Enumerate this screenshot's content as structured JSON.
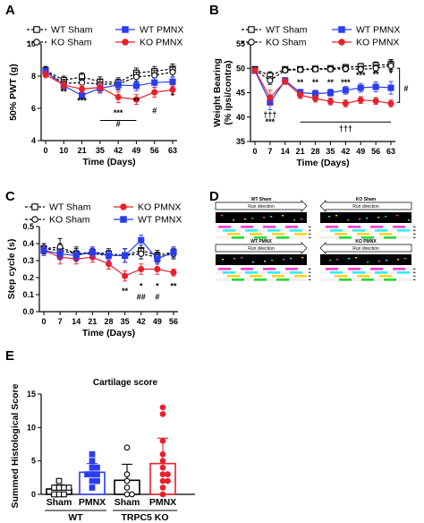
{
  "chart_data": [
    {
      "panel": "A",
      "type": "line",
      "ylabel": "50% PWT (g)",
      "xlabel": "Time (Days)",
      "ylim": [
        4,
        10
      ],
      "yticks": [
        4,
        6,
        8,
        10
      ],
      "x": [
        0,
        10,
        21,
        35,
        42,
        49,
        56,
        63
      ],
      "series": [
        {
          "name": "WT Sham",
          "color": "#000000",
          "marker": "square-open",
          "dashed": true,
          "values": [
            8.35,
            7.75,
            7.95,
            7.65,
            7.6,
            8.2,
            8.3,
            8.45
          ],
          "err": [
            0.25,
            0.25,
            0.25,
            0.3,
            0.3,
            0.3,
            0.3,
            0.3
          ]
        },
        {
          "name": "KO Sham",
          "color": "#000000",
          "marker": "circle-open",
          "dashed": true,
          "values": [
            8.3,
            7.55,
            7.6,
            7.5,
            7.5,
            7.95,
            8.05,
            8.25
          ],
          "err": [
            0.25,
            0.25,
            0.25,
            0.3,
            0.3,
            0.3,
            0.3,
            0.3
          ]
        },
        {
          "name": "WT PMNX",
          "color": "#2b3cf0",
          "marker": "square-filled",
          "dashed": false,
          "values": [
            8.3,
            7.4,
            6.8,
            7.25,
            7.45,
            7.4,
            7.6,
            7.65
          ],
          "err": [
            0.2,
            0.2,
            0.2,
            0.3,
            0.3,
            0.3,
            0.3,
            0.3
          ]
        },
        {
          "name": "KO PMNX",
          "color": "#e8202a",
          "marker": "circle-filled",
          "dashed": false,
          "values": [
            8.1,
            7.45,
            7.2,
            7.3,
            6.7,
            6.55,
            7.0,
            7.15
          ],
          "err": [
            0.2,
            0.2,
            0.25,
            0.3,
            0.35,
            0.3,
            0.3,
            0.3
          ]
        }
      ],
      "annotations": [
        {
          "text": "**",
          "x": 10,
          "y": 6.85
        },
        {
          "text": "***",
          "x": 21,
          "y": 6.3
        },
        {
          "text": "***",
          "x": 42,
          "y": 5.55
        },
        {
          "text": "#",
          "x": 42,
          "y": 4.85
        },
        {
          "text": "**",
          "x": 49,
          "y": 6.3
        },
        {
          "text": "#",
          "x": 56,
          "y": 5.7
        },
        {
          "text": "*",
          "x": 63,
          "y": 6.6
        }
      ],
      "bars": [
        {
          "x1": 35,
          "x2": 49,
          "y": 5.25
        }
      ]
    },
    {
      "panel": "B",
      "type": "line",
      "ylabel": "Weight Bearing (% ipsi/contra)",
      "xlabel": "Time (Days)",
      "ylim": [
        35,
        55
      ],
      "yticks": [
        35,
        40,
        45,
        50,
        55
      ],
      "x": [
        0,
        7,
        14,
        21,
        28,
        35,
        42,
        49,
        56,
        63
      ],
      "series": [
        {
          "name": "WT Sham",
          "color": "#000000",
          "marker": "square-open",
          "dashed": true,
          "values": [
            49.8,
            48.5,
            49.8,
            49.8,
            49.9,
            50.0,
            50.2,
            50.4,
            50.6,
            50.8
          ],
          "err": [
            0.5,
            0.8,
            0.5,
            0.5,
            0.5,
            0.5,
            0.6,
            0.6,
            0.7,
            1.0
          ]
        },
        {
          "name": "KO Sham",
          "color": "#000000",
          "marker": "circle-open",
          "dashed": true,
          "values": [
            49.7,
            47.5,
            49.6,
            49.7,
            49.8,
            49.8,
            49.9,
            49.8,
            50.0,
            50.5
          ],
          "err": [
            0.5,
            0.8,
            0.5,
            0.5,
            0.5,
            0.5,
            0.6,
            0.6,
            0.7,
            1.0
          ]
        },
        {
          "name": "WT PMNX",
          "color": "#2b3cf0",
          "marker": "square-filled",
          "dashed": false,
          "values": [
            49.5,
            43.0,
            47.5,
            45.0,
            44.8,
            45.0,
            45.5,
            46.0,
            46.2,
            46.0
          ],
          "err": [
            0.5,
            1.5,
            0.6,
            0.7,
            0.7,
            0.7,
            0.8,
            0.9,
            1.0,
            1.3
          ]
        },
        {
          "name": "KO PMNX",
          "color": "#e8202a",
          "marker": "circle-filled",
          "dashed": false,
          "values": [
            49.6,
            44.0,
            47.3,
            44.5,
            43.8,
            43.2,
            42.8,
            43.5,
            43.3,
            42.8
          ],
          "err": [
            0.5,
            1.5,
            0.6,
            0.7,
            0.7,
            0.7,
            0.7,
            0.7,
            0.7,
            0.7
          ]
        }
      ],
      "annotations": [
        {
          "text": "†††",
          "x": 7,
          "y": 40.0
        },
        {
          "text": "***",
          "x": 7,
          "y": 38.5
        },
        {
          "text": "**",
          "x": 21,
          "y": 46.6
        },
        {
          "text": "**",
          "x": 28,
          "y": 46.6
        },
        {
          "text": "**",
          "x": 35,
          "y": 46.6
        },
        {
          "text": "***",
          "x": 42,
          "y": 46.6
        },
        {
          "text": "***",
          "x": 49,
          "y": 48.0
        },
        {
          "text": "**",
          "x": 56,
          "y": 48.2
        },
        {
          "text": "*",
          "x": 63,
          "y": 48.4
        },
        {
          "text": "†††",
          "x": 42,
          "y": 37.1
        },
        {
          "text": "#",
          "x": 70,
          "y": 45.3
        }
      ],
      "bars": [
        {
          "x1": 21,
          "x2": 63,
          "y": 39.0
        }
      ],
      "bracket": {
        "x": 67,
        "y1": 43.0,
        "y2": 50.0
      }
    },
    {
      "panel": "C",
      "type": "line",
      "ylabel": "Step cycle (s)",
      "xlabel": "Time (Days)",
      "ylim": [
        0.0,
        0.5
      ],
      "yticks": [
        "0.0",
        "0.1",
        "0.2",
        "0.3",
        "0.4",
        "0.5"
      ],
      "x": [
        0,
        7,
        14,
        21,
        28,
        35,
        42,
        49,
        56
      ],
      "series": [
        {
          "name": "WT Sham",
          "color": "#000000",
          "marker": "square-open",
          "dashed": true,
          "values": [
            0.37,
            0.36,
            0.34,
            0.35,
            0.34,
            0.33,
            0.36,
            0.33,
            0.35
          ],
          "err": [
            0.03,
            0.04,
            0.03,
            0.03,
            0.03,
            0.04,
            0.03,
            0.03,
            0.03
          ]
        },
        {
          "name": "KO Sham",
          "color": "#000000",
          "marker": "circle-open",
          "dashed": true,
          "values": [
            0.37,
            0.38,
            0.34,
            0.34,
            0.33,
            0.33,
            0.34,
            0.32,
            0.34
          ],
          "err": [
            0.03,
            0.05,
            0.04,
            0.03,
            0.03,
            0.04,
            0.03,
            0.03,
            0.03
          ]
        },
        {
          "name": "KO PMNX",
          "color": "#e8202a",
          "marker": "circle-filled",
          "dashed": false,
          "values": [
            0.36,
            0.32,
            0.31,
            0.32,
            0.28,
            0.21,
            0.25,
            0.25,
            0.23
          ],
          "err": [
            0.03,
            0.04,
            0.03,
            0.03,
            0.03,
            0.03,
            0.03,
            0.03,
            0.02
          ]
        },
        {
          "name": "WT PMNX",
          "color": "#2b3cf0",
          "marker": "square-filled",
          "dashed": false,
          "values": [
            0.36,
            0.34,
            0.33,
            0.35,
            0.33,
            0.33,
            0.42,
            0.31,
            0.35
          ],
          "err": [
            0.03,
            0.03,
            0.03,
            0.03,
            0.03,
            0.04,
            0.03,
            0.03,
            0.03
          ]
        }
      ],
      "annotations": [
        {
          "text": "**",
          "x": 35,
          "y": 0.105
        },
        {
          "text": "*",
          "x": 42,
          "y": 0.135
        },
        {
          "text": "##",
          "x": 42,
          "y": 0.07
        },
        {
          "text": "*",
          "x": 49,
          "y": 0.135
        },
        {
          "text": "#",
          "x": 49,
          "y": 0.07
        },
        {
          "text": "**",
          "x": 56,
          "y": 0.135
        }
      ]
    },
    {
      "panel": "E",
      "type": "bar",
      "title": "Cartilage score",
      "ylabel": "Summed Histological Score",
      "ylim": [
        0,
        15
      ],
      "yticks": [
        0,
        5,
        10,
        15
      ],
      "categories": [
        "Sham",
        "PMNX",
        "Sham",
        "PMNX"
      ],
      "groups": [
        "WT",
        "TRPC5 KO"
      ],
      "bars": [
        {
          "category": "Sham",
          "group": "WT",
          "color": "#000000",
          "marker": "square-open",
          "mean": 0.8,
          "err": 0.6,
          "points": [
            0,
            0,
            0,
            1,
            1,
            1,
            1,
            2
          ]
        },
        {
          "category": "PMNX",
          "group": "WT",
          "color": "#2b3cf0",
          "marker": "square-filled",
          "mean": 3.3,
          "err": 1.3,
          "points": [
            1,
            2,
            2,
            3,
            3,
            3,
            4,
            4,
            5,
            6
          ]
        },
        {
          "category": "Sham",
          "group": "TRPC5 KO",
          "color": "#000000",
          "marker": "circle-open",
          "mean": 2.1,
          "err": 2.4,
          "points": [
            0,
            0,
            1,
            2,
            3,
            7
          ]
        },
        {
          "category": "PMNX",
          "group": "TRPC5 KO",
          "color": "#e8202a",
          "marker": "circle-filled",
          "mean": 4.6,
          "err": 3.8,
          "points": [
            0,
            1,
            2,
            2,
            3,
            3,
            4,
            5,
            6,
            8,
            12,
            13
          ]
        }
      ]
    }
  ],
  "panel_d": {
    "wt_sham": "WT Sham",
    "ko_sham": "KO Sham",
    "wt_pmnx": "WT PMNX",
    "ko_pmnx": "KO PMNX",
    "run_direction": "Run direction"
  },
  "panel_labels": [
    "A",
    "B",
    "C",
    "D",
    "E"
  ]
}
